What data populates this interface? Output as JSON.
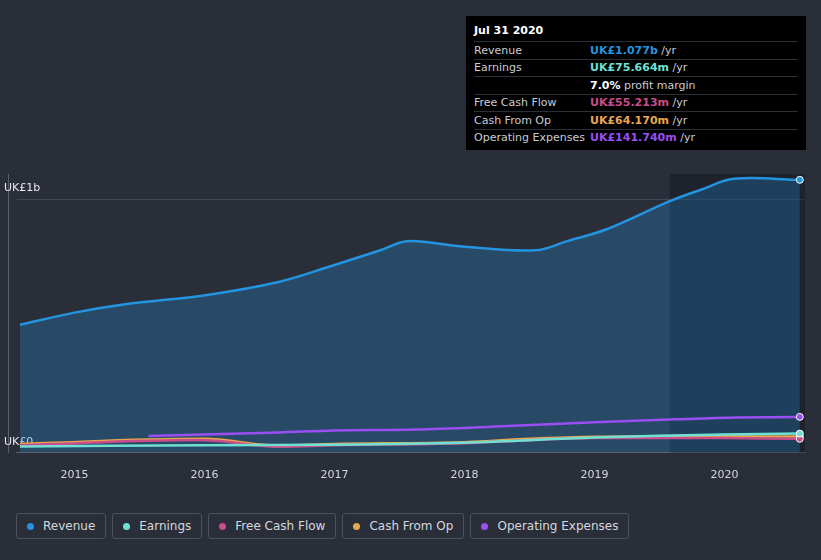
{
  "chart_data": {
    "type": "line",
    "xlim": [
      2014.55,
      2020.62
    ],
    "xticks": [
      2015,
      2016,
      2017,
      2018,
      2019,
      2020
    ],
    "ylim": [
      0,
      1.1
    ],
    "yticks": [
      {
        "value": 0,
        "label": "UK£0"
      },
      {
        "value": 1,
        "label": "UK£1b"
      }
    ],
    "grid": true,
    "legend": "bottom",
    "highlight_x": [
      2019.58,
      2020.62
    ],
    "series": [
      {
        "name": "Revenue",
        "color": "#2394df",
        "type": "area",
        "x": [
          2014.58,
          2015.0,
          2015.39,
          2016.02,
          2016.57,
          2016.97,
          2017.37,
          2017.56,
          2018.0,
          2018.55,
          2018.79,
          2019.1,
          2019.58,
          2019.83,
          2020.07,
          2020.58
        ],
        "values": [
          0.505,
          0.553,
          0.586,
          0.623,
          0.674,
          0.736,
          0.802,
          0.835,
          0.813,
          0.799,
          0.835,
          0.883,
          0.993,
          1.04,
          1.081,
          1.077
        ]
      },
      {
        "name": "Earnings",
        "color": "#6fe0d4",
        "type": "line",
        "x": [
          2014.58,
          2016.0,
          2017.0,
          2018.0,
          2019.0,
          2020.0,
          2020.58
        ],
        "values": [
          0.025,
          0.03,
          0.032,
          0.04,
          0.06,
          0.072,
          0.0757
        ]
      },
      {
        "name": "Free Cash Flow",
        "color": "#c94d8a",
        "type": "line",
        "x": [
          2014.58,
          2016.0,
          2016.5,
          2017.0,
          2018.0,
          2018.5,
          2019.0,
          2020.0,
          2020.58
        ],
        "values": [
          0.03,
          0.05,
          0.025,
          0.03,
          0.038,
          0.05,
          0.058,
          0.058,
          0.0552
        ]
      },
      {
        "name": "Cash From Op",
        "color": "#e8a74f",
        "type": "line",
        "x": [
          2014.58,
          2016.0,
          2016.5,
          2017.0,
          2018.0,
          2018.5,
          2019.0,
          2020.0,
          2020.58
        ],
        "values": [
          0.035,
          0.055,
          0.03,
          0.035,
          0.042,
          0.055,
          0.063,
          0.065,
          0.0642
        ]
      },
      {
        "name": "Operating Expenses",
        "color": "#9a4ff2",
        "type": "line",
        "x": [
          2015.57,
          2016.57,
          2017.0,
          2017.63,
          2018.2,
          2019.0,
          2019.63,
          2020.1,
          2020.58
        ],
        "values": [
          0.066,
          0.08,
          0.088,
          0.092,
          0.103,
          0.121,
          0.132,
          0.139,
          0.1417
        ]
      }
    ],
    "tooltip": {
      "title": "Jul 31 2020",
      "rows": [
        {
          "label": "Revenue",
          "value": "UK£1.077b",
          "unit": "/yr"
        },
        {
          "label": "Earnings",
          "value": "UK£75.664m",
          "unit": "/yr"
        },
        {
          "label": null,
          "value": "7.0%",
          "unit": "profit margin"
        },
        {
          "label": "Free Cash Flow",
          "value": "UK£55.213m",
          "unit": "/yr"
        },
        {
          "label": "Cash From Op",
          "value": "UK£64.170m",
          "unit": "/yr"
        },
        {
          "label": "Operating Expenses",
          "value": "UK£141.740m",
          "unit": "/yr"
        }
      ]
    }
  }
}
